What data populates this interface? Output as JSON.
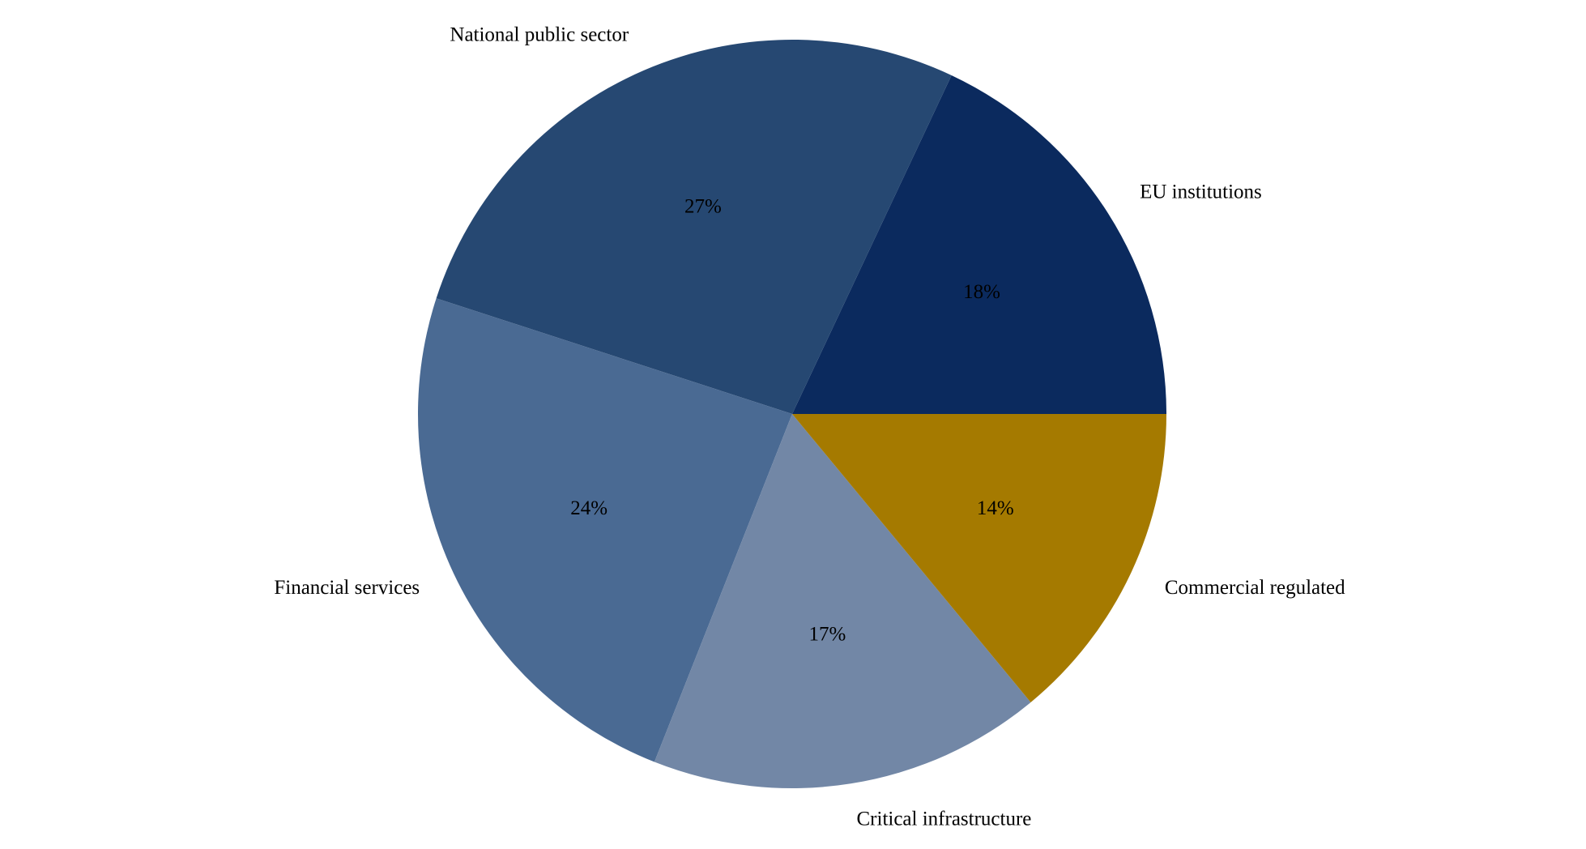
{
  "chart_data": {
    "type": "pie",
    "categories": [
      "EU institutions",
      "National public sector",
      "Financial services",
      "Critical infrastructure",
      "Commercial regulated"
    ],
    "values": [
      18,
      27,
      24,
      17,
      14
    ],
    "value_labels": [
      "18%",
      "27%",
      "24%",
      "17%",
      "14%"
    ],
    "colors": [
      "#0b2a5e",
      "#264872",
      "#4a6a93",
      "#7287a6",
      "#a57a00"
    ]
  }
}
